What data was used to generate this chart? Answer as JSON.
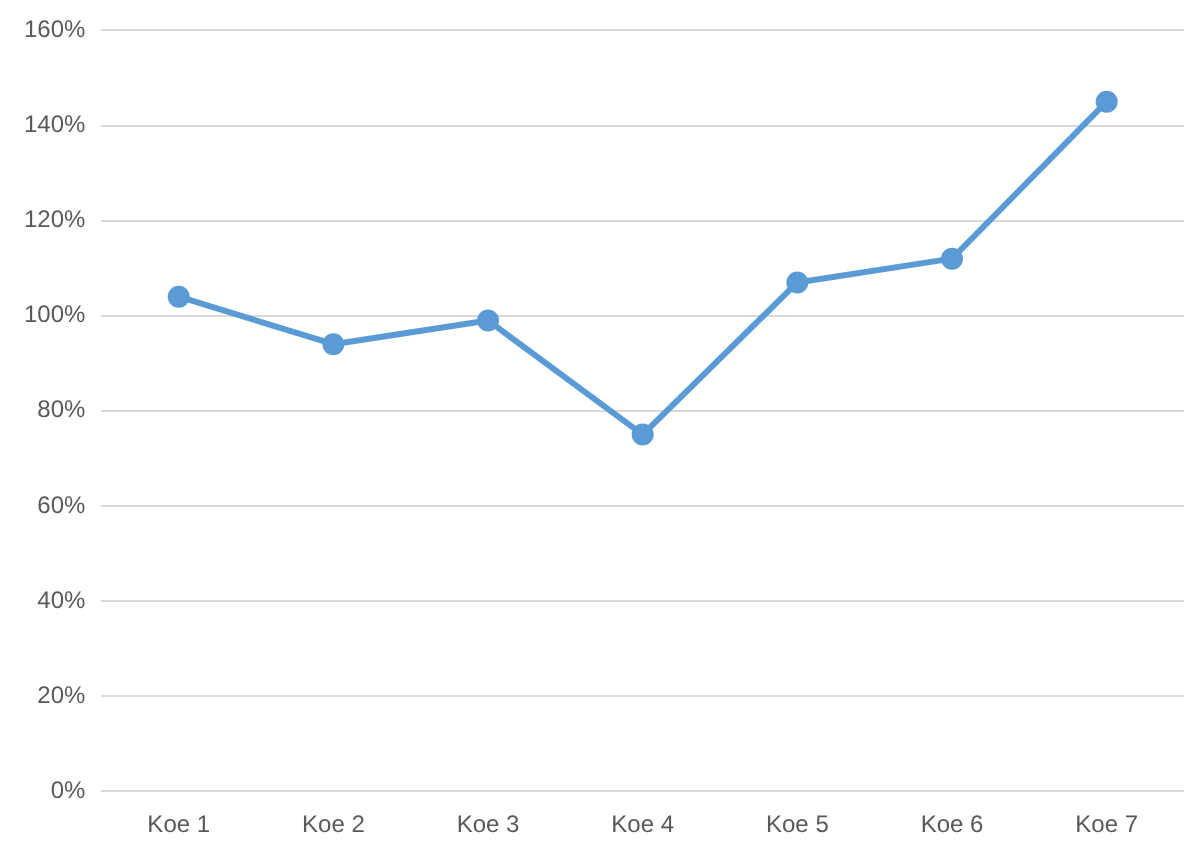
{
  "chart_data": {
    "type": "line",
    "categories": [
      "Koe 1",
      "Koe 2",
      "Koe 3",
      "Koe 4",
      "Koe 5",
      "Koe 6",
      "Koe 7"
    ],
    "series": [
      {
        "color": "#5b9bd5",
        "values": [
          104,
          94,
          99,
          75,
          107,
          112,
          145
        ]
      }
    ],
    "ylim": [
      0,
      160
    ],
    "yticks": [
      {
        "value": 0,
        "label": "0%"
      },
      {
        "value": 20,
        "label": "20%"
      },
      {
        "value": 40,
        "label": "40%"
      },
      {
        "value": 60,
        "label": "60%"
      },
      {
        "value": 80,
        "label": "80%"
      },
      {
        "value": 100,
        "label": "100%"
      },
      {
        "value": 120,
        "label": "120%"
      },
      {
        "value": 140,
        "label": "140%"
      },
      {
        "value": 160,
        "label": "160%"
      }
    ],
    "grid": "y",
    "legend": false,
    "marker": "circle",
    "line_style": "solid"
  }
}
